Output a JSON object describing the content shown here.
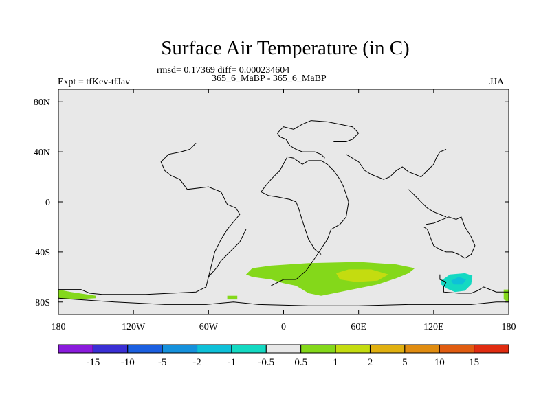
{
  "title": "Surface Air Temperature (in C)",
  "stats_line": "rmsd= 0.17369 diff= 0.000234604",
  "left_label": "Expt = tfKev-tfJav",
  "center_label": "365_6_MaBP - 365_6_MaBP",
  "right_label": "JJA",
  "chart_data": {
    "type": "heatmap",
    "title": "Surface Air Temperature (in C)",
    "subtitle": "rmsd= 0.17369 diff= 0.000234604",
    "xlim": [
      -180,
      180
    ],
    "ylim": [
      -90,
      90
    ],
    "x_ticks": [
      {
        "value": -180,
        "label": "180"
      },
      {
        "value": -120,
        "label": "120W"
      },
      {
        "value": -60,
        "label": "60W"
      },
      {
        "value": 0,
        "label": "0"
      },
      {
        "value": 60,
        "label": "60E"
      },
      {
        "value": 120,
        "label": "120E"
      },
      {
        "value": 180,
        "label": "180"
      }
    ],
    "y_ticks": [
      {
        "value": 80,
        "label": "80N"
      },
      {
        "value": 40,
        "label": "40N"
      },
      {
        "value": 0,
        "label": "0"
      },
      {
        "value": -40,
        "label": "40S"
      },
      {
        "value": -80,
        "label": "80S"
      }
    ],
    "colorbar": {
      "labels": [
        "-15",
        "-10",
        "-5",
        "-2",
        "-1",
        "-0.5",
        "0.5",
        "1",
        "2",
        "5",
        "10",
        "15"
      ],
      "colors": [
        "#8a1bdc",
        "#3a2fd4",
        "#1b5fe0",
        "#1591dc",
        "#0ec0d8",
        "#14d9c2",
        "#e8e8e8",
        "#84d81a",
        "#c4dc10",
        "#e0b010",
        "#e08c10",
        "#e05c10",
        "#e02c10"
      ]
    },
    "background_color": "#e8e8e8",
    "anomaly_regions": [
      {
        "name": "southern-ocean-band",
        "bin": "0.5 to 1",
        "color": "#84d81a",
        "polygon": [
          [
            -30,
            -58
          ],
          [
            -25,
            -53
          ],
          [
            -10,
            -51
          ],
          [
            20,
            -49
          ],
          [
            60,
            -48
          ],
          [
            90,
            -50
          ],
          [
            105,
            -53
          ],
          [
            100,
            -57
          ],
          [
            90,
            -61
          ],
          [
            75,
            -66
          ],
          [
            60,
            -69
          ],
          [
            45,
            -72
          ],
          [
            30,
            -75
          ],
          [
            20,
            -73
          ],
          [
            10,
            -67
          ],
          [
            0,
            -65
          ],
          [
            -10,
            -62
          ],
          [
            -25,
            -60
          ]
        ]
      },
      {
        "name": "indian-ocean-core",
        "bin": "1 to 2",
        "color": "#c4dc10",
        "polygon": [
          [
            42,
            -57
          ],
          [
            52,
            -54
          ],
          [
            70,
            -54
          ],
          [
            84,
            -58
          ],
          [
            75,
            -63
          ],
          [
            58,
            -64
          ],
          [
            45,
            -62
          ]
        ]
      },
      {
        "name": "antarctic-patch-west",
        "bin": "0.5 to 1",
        "color": "#84d81a",
        "polygon": [
          [
            -180,
            -70
          ],
          [
            -170,
            -72
          ],
          [
            -150,
            -75
          ],
          [
            -150,
            -77
          ],
          [
            -170,
            -78
          ],
          [
            -180,
            -77
          ]
        ]
      },
      {
        "name": "ross-sea-patch",
        "bin": "0.5 to 1",
        "color": "#84d81a",
        "polygon": [
          [
            -45,
            -75
          ],
          [
            -37,
            -75
          ],
          [
            -37,
            -78
          ],
          [
            -45,
            -78
          ]
        ]
      },
      {
        "name": "antarctic-patch-east",
        "bin": "0.5 to 1",
        "color": "#84d81a",
        "polygon": [
          [
            176,
            -70
          ],
          [
            180,
            -70
          ],
          [
            180,
            -80
          ],
          [
            176,
            -78
          ]
        ]
      },
      {
        "name": "australia-south-anomaly",
        "bin": "-1 to -0.5",
        "color": "#14d9c2",
        "polygon": [
          [
            126,
            -63
          ],
          [
            133,
            -58
          ],
          [
            145,
            -57
          ],
          [
            151,
            -59
          ],
          [
            150,
            -66
          ],
          [
            145,
            -71
          ],
          [
            137,
            -72
          ],
          [
            130,
            -69
          ],
          [
            126,
            -66
          ]
        ]
      },
      {
        "name": "australia-south-core",
        "bin": "-2 to -1",
        "color": "#0ec0d8",
        "polygon": [
          [
            134,
            -63
          ],
          [
            140,
            -60
          ],
          [
            146,
            -62
          ],
          [
            143,
            -66
          ],
          [
            136,
            -66
          ]
        ]
      }
    ],
    "coastlines": [
      [
        [
          -180,
          -70
        ],
        [
          -162,
          -70
        ],
        [
          -155,
          -73
        ],
        [
          -145,
          -74
        ],
        [
          -110,
          -74
        ],
        [
          -90,
          -73
        ],
        [
          -70,
          -72
        ],
        [
          -62,
          -68
        ],
        [
          -60,
          -60
        ],
        [
          -58,
          -52
        ],
        [
          -55,
          -40
        ],
        [
          -50,
          -30
        ],
        [
          -45,
          -22
        ],
        [
          -35,
          -10
        ],
        [
          -38,
          -5
        ],
        [
          -45,
          -2
        ],
        [
          -50,
          8
        ],
        [
          -60,
          12
        ],
        [
          -77,
          10
        ],
        [
          -83,
          18
        ],
        [
          -90,
          21
        ],
        [
          -95,
          25
        ],
        [
          -98,
          32
        ],
        [
          -92,
          38
        ],
        [
          -82,
          40
        ],
        [
          -75,
          42
        ],
        [
          -70,
          47
        ]
      ],
      [
        [
          -60,
          -60
        ],
        [
          -53,
          -52
        ],
        [
          -50,
          -47
        ],
        [
          -35,
          -32
        ],
        [
          -30,
          -22
        ]
      ],
      [
        [
          -180,
          -77
        ],
        [
          -165,
          -78
        ],
        [
          -135,
          -80
        ],
        [
          -95,
          -82
        ],
        [
          -62,
          -82
        ],
        [
          -40,
          -80
        ],
        [
          -20,
          -82
        ],
        [
          20,
          -83
        ],
        [
          60,
          -83
        ],
        [
          100,
          -82
        ],
        [
          120,
          -82
        ],
        [
          150,
          -82
        ],
        [
          170,
          -80
        ],
        [
          180,
          -80
        ]
      ],
      [
        [
          -10,
          -67
        ],
        [
          0,
          -62
        ],
        [
          10,
          -62
        ],
        [
          18,
          -55
        ],
        [
          25,
          -45
        ],
        [
          35,
          -30
        ],
        [
          38,
          -22
        ],
        [
          45,
          -18
        ],
        [
          50,
          -12
        ],
        [
          52,
          0
        ],
        [
          48,
          12
        ],
        [
          45,
          18
        ],
        [
          40,
          25
        ],
        [
          35,
          30
        ],
        [
          30,
          33
        ],
        [
          20,
          33
        ],
        [
          15,
          30
        ],
        [
          8,
          35
        ],
        [
          3,
          36
        ]
      ],
      [
        [
          3,
          36
        ],
        [
          -3,
          25
        ],
        [
          -10,
          18
        ],
        [
          -15,
          12
        ],
        [
          -18,
          8
        ],
        [
          -12,
          5
        ],
        [
          -5,
          4
        ],
        [
          5,
          2
        ],
        [
          10,
          0
        ],
        [
          12,
          -5
        ],
        [
          15,
          -15
        ],
        [
          20,
          -30
        ],
        [
          25,
          -38
        ],
        [
          30,
          -42
        ]
      ],
      [
        [
          -5,
          55
        ],
        [
          -3,
          52
        ],
        [
          2,
          50
        ],
        [
          5,
          45
        ],
        [
          10,
          42
        ],
        [
          15,
          40
        ],
        [
          25,
          40
        ],
        [
          30,
          38
        ],
        [
          33,
          35
        ]
      ],
      [
        [
          -5,
          55
        ],
        [
          0,
          60
        ],
        [
          8,
          58
        ],
        [
          15,
          62
        ],
        [
          22,
          65
        ],
        [
          35,
          64
        ],
        [
          45,
          62
        ],
        [
          55,
          60
        ],
        [
          60,
          55
        ],
        [
          55,
          50
        ],
        [
          50,
          48
        ],
        [
          40,
          48
        ]
      ],
      [
        [
          50,
          38
        ],
        [
          55,
          35
        ],
        [
          60,
          32
        ],
        [
          65,
          25
        ],
        [
          70,
          22
        ],
        [
          75,
          20
        ],
        [
          80,
          18
        ],
        [
          85,
          20
        ],
        [
          90,
          25
        ],
        [
          95,
          28
        ],
        [
          100,
          24
        ],
        [
          105,
          22
        ],
        [
          110,
          20
        ],
        [
          115,
          25
        ],
        [
          120,
          30
        ],
        [
          122,
          35
        ],
        [
          125,
          40
        ],
        [
          130,
          42
        ]
      ],
      [
        [
          100,
          10
        ],
        [
          105,
          5
        ],
        [
          110,
          0
        ],
        [
          115,
          -5
        ],
        [
          120,
          -8
        ],
        [
          125,
          -10
        ],
        [
          130,
          -12
        ]
      ],
      [
        [
          112,
          -20
        ],
        [
          115,
          -22
        ],
        [
          118,
          -30
        ],
        [
          120,
          -35
        ],
        [
          125,
          -38
        ],
        [
          130,
          -40
        ],
        [
          135,
          -40
        ],
        [
          140,
          -42
        ],
        [
          145,
          -45
        ],
        [
          150,
          -42
        ],
        [
          153,
          -35
        ],
        [
          150,
          -28
        ],
        [
          145,
          -20
        ],
        [
          142,
          -12
        ],
        [
          138,
          -14
        ],
        [
          132,
          -12
        ],
        [
          125,
          -15
        ],
        [
          120,
          -17
        ],
        [
          114,
          -18
        ]
      ],
      [
        [
          125,
          -58
        ],
        [
          125,
          -62
        ],
        [
          130,
          -64
        ],
        [
          128,
          -68
        ],
        [
          128,
          -72
        ],
        [
          140,
          -73
        ],
        [
          150,
          -73
        ],
        [
          155,
          -71
        ],
        [
          160,
          -68
        ],
        [
          165,
          -70
        ],
        [
          170,
          -72
        ],
        [
          180,
          -72
        ]
      ]
    ]
  }
}
